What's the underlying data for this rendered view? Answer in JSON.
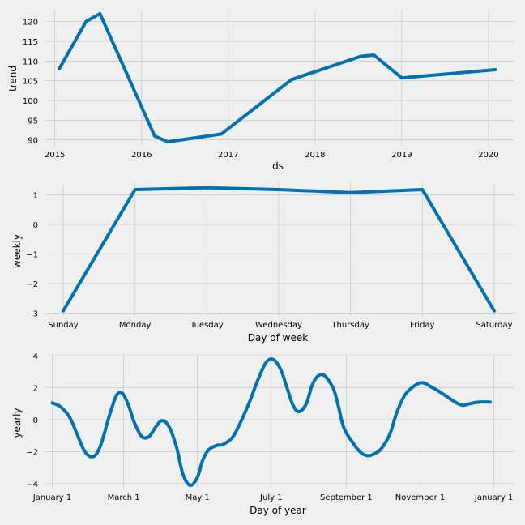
{
  "colors": {
    "background": "#f0f0f0",
    "line": "#0072b2",
    "grid": "#cbcbcb"
  },
  "chart_data": [
    {
      "type": "line",
      "xlabel": "ds",
      "ylabel": "trend",
      "x_ticks": [
        "2015",
        "2016",
        "2017",
        "2018",
        "2019",
        "2020"
      ],
      "y_ticks": [
        "90",
        "95",
        "100",
        "105",
        "110",
        "115",
        "120"
      ],
      "xlim": [
        2014.9,
        2020.3
      ],
      "ylim": [
        88.5,
        123
      ],
      "grid": true,
      "x": [
        2015.05,
        2015.36,
        2015.52,
        2016.15,
        2016.3,
        2016.92,
        2017.73,
        2018.53,
        2018.68,
        2019.0,
        2020.08
      ],
      "y": [
        108,
        120,
        122,
        91,
        89.5,
        91.5,
        105.3,
        111.2,
        111.5,
        105.7,
        107.8
      ]
    },
    {
      "type": "line",
      "xlabel": "Day of week",
      "ylabel": "weekly",
      "categories": [
        "Sunday",
        "Monday",
        "Tuesday",
        "Wednesday",
        "Thursday",
        "Friday",
        "Saturday"
      ],
      "y_ticks": [
        "1",
        "0",
        "−1",
        "−2",
        "−3"
      ],
      "ylim": [
        -3.1,
        1.4
      ],
      "grid": true,
      "values": [
        -2.93,
        1.18,
        1.24,
        1.18,
        1.08,
        1.18,
        -2.93
      ]
    },
    {
      "type": "line",
      "xlabel": "Day of year",
      "ylabel": "yearly",
      "x_ticks": [
        "January 1",
        "March 1",
        "May 1",
        "July 1",
        "September 1",
        "November 1",
        "January 1"
      ],
      "x_tick_days": [
        0,
        59,
        120,
        181,
        243,
        304,
        365
      ],
      "y_ticks": [
        "4",
        "2",
        "0",
        "−2",
        "−4"
      ],
      "ylim": [
        -4.3,
        4.1
      ],
      "xlim": [
        -5,
        382
      ],
      "grid": true,
      "x": [
        0,
        7,
        14,
        20,
        27,
        34,
        40,
        47,
        53,
        58,
        63,
        68,
        74,
        80,
        86,
        91,
        97,
        103,
        108,
        114,
        120,
        124,
        129,
        136,
        141,
        149,
        156,
        163,
        170,
        177,
        183,
        189,
        194,
        199,
        204,
        210,
        215,
        220,
        225,
        232,
        236,
        241,
        249,
        255,
        261,
        267,
        272,
        279,
        285,
        292,
        301,
        307,
        313,
        318,
        323,
        327,
        333,
        339,
        345,
        353,
        362
      ],
      "y": [
        1.05,
        0.8,
        0.2,
        -0.8,
        -2.0,
        -2.3,
        -1.6,
        0.2,
        1.5,
        1.65,
        0.9,
        -0.2,
        -1.05,
        -1.05,
        -0.4,
        -0.05,
        -0.5,
        -1.8,
        -3.4,
        -4.1,
        -3.6,
        -2.6,
        -1.9,
        -1.6,
        -1.55,
        -1.1,
        -0.1,
        1.1,
        2.5,
        3.6,
        3.75,
        3.1,
        2.0,
        0.9,
        0.5,
        1.0,
        2.2,
        2.75,
        2.75,
        2.0,
        1.0,
        -0.5,
        -1.5,
        -2.05,
        -2.25,
        -2.1,
        -1.8,
        -0.9,
        0.5,
        1.6,
        2.2,
        2.3,
        2.05,
        1.85,
        1.6,
        1.4,
        1.1,
        0.9,
        1.0,
        1.1,
        1.1
      ]
    }
  ]
}
